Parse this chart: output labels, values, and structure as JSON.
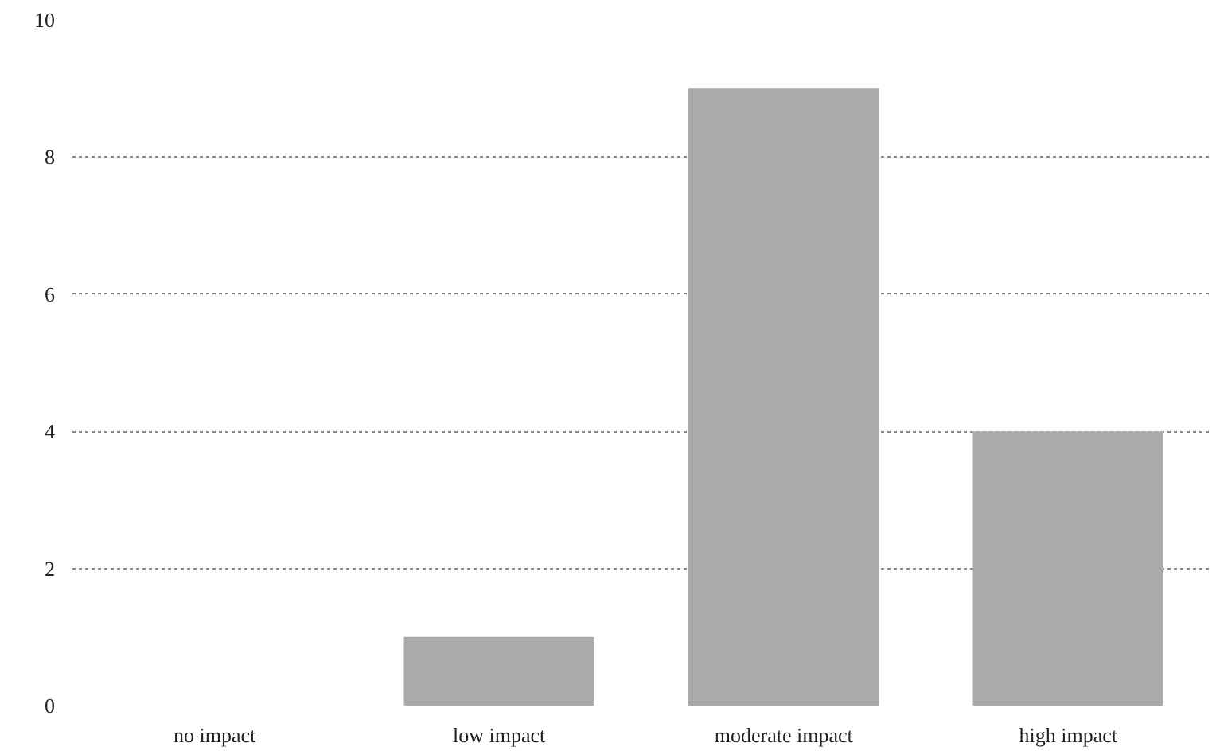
{
  "chart_data": {
    "type": "bar",
    "categories": [
      "no impact",
      "low impact",
      "moderate impact",
      "high impact"
    ],
    "values": [
      0,
      1,
      9,
      4
    ],
    "color": "#aaaaaa",
    "ylim": [
      0,
      10
    ],
    "yticks": [
      0,
      2,
      4,
      6,
      8,
      10
    ],
    "grid": "y"
  }
}
